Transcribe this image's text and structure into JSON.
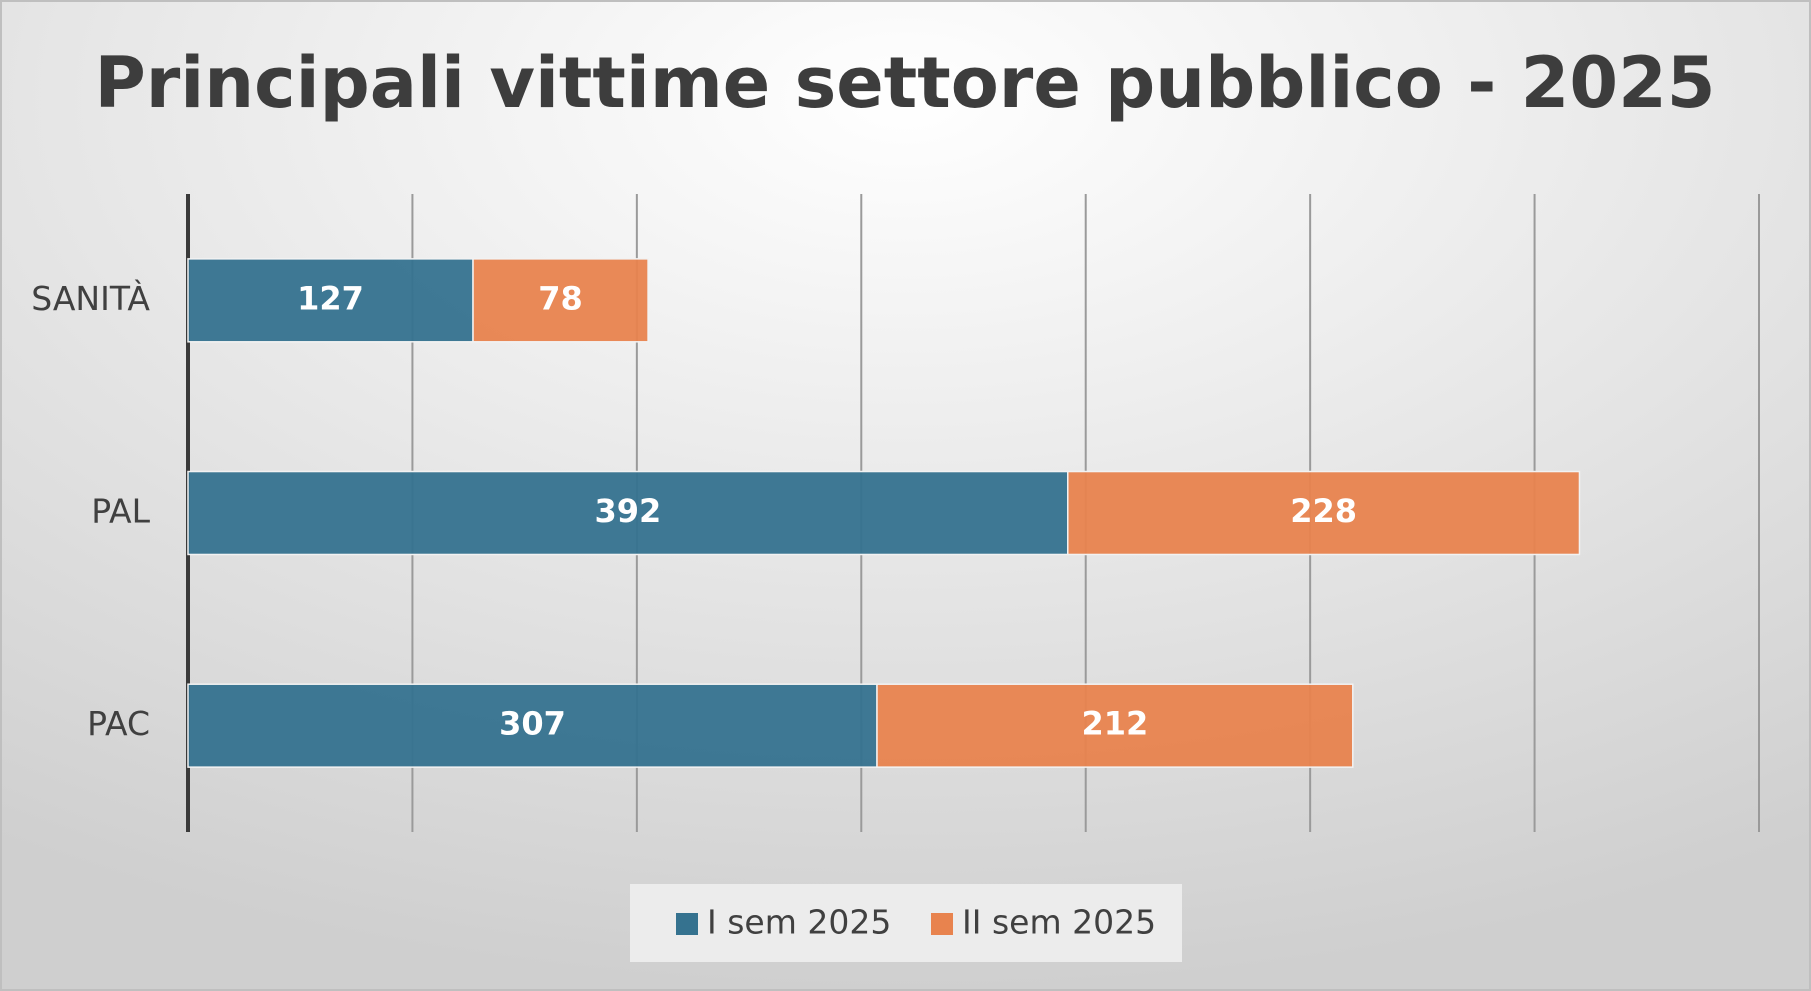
{
  "chart_data": {
    "type": "stacked-barh",
    "title": "Principali vittime settore pubblico - 2025",
    "categories": [
      "SANITÀ",
      "PAL",
      "PAC"
    ],
    "series": [
      {
        "name": "I sem 2025",
        "color": "#35728f",
        "values": [
          127,
          392,
          307
        ]
      },
      {
        "name": "II sem 2025",
        "color": "#e8834e",
        "values": [
          78,
          228,
          212
        ]
      }
    ],
    "xlim": [
      0,
      700
    ],
    "xticks": [
      0,
      100,
      200,
      300,
      400,
      500,
      600,
      700
    ],
    "grid": true,
    "legend": "bottom"
  }
}
